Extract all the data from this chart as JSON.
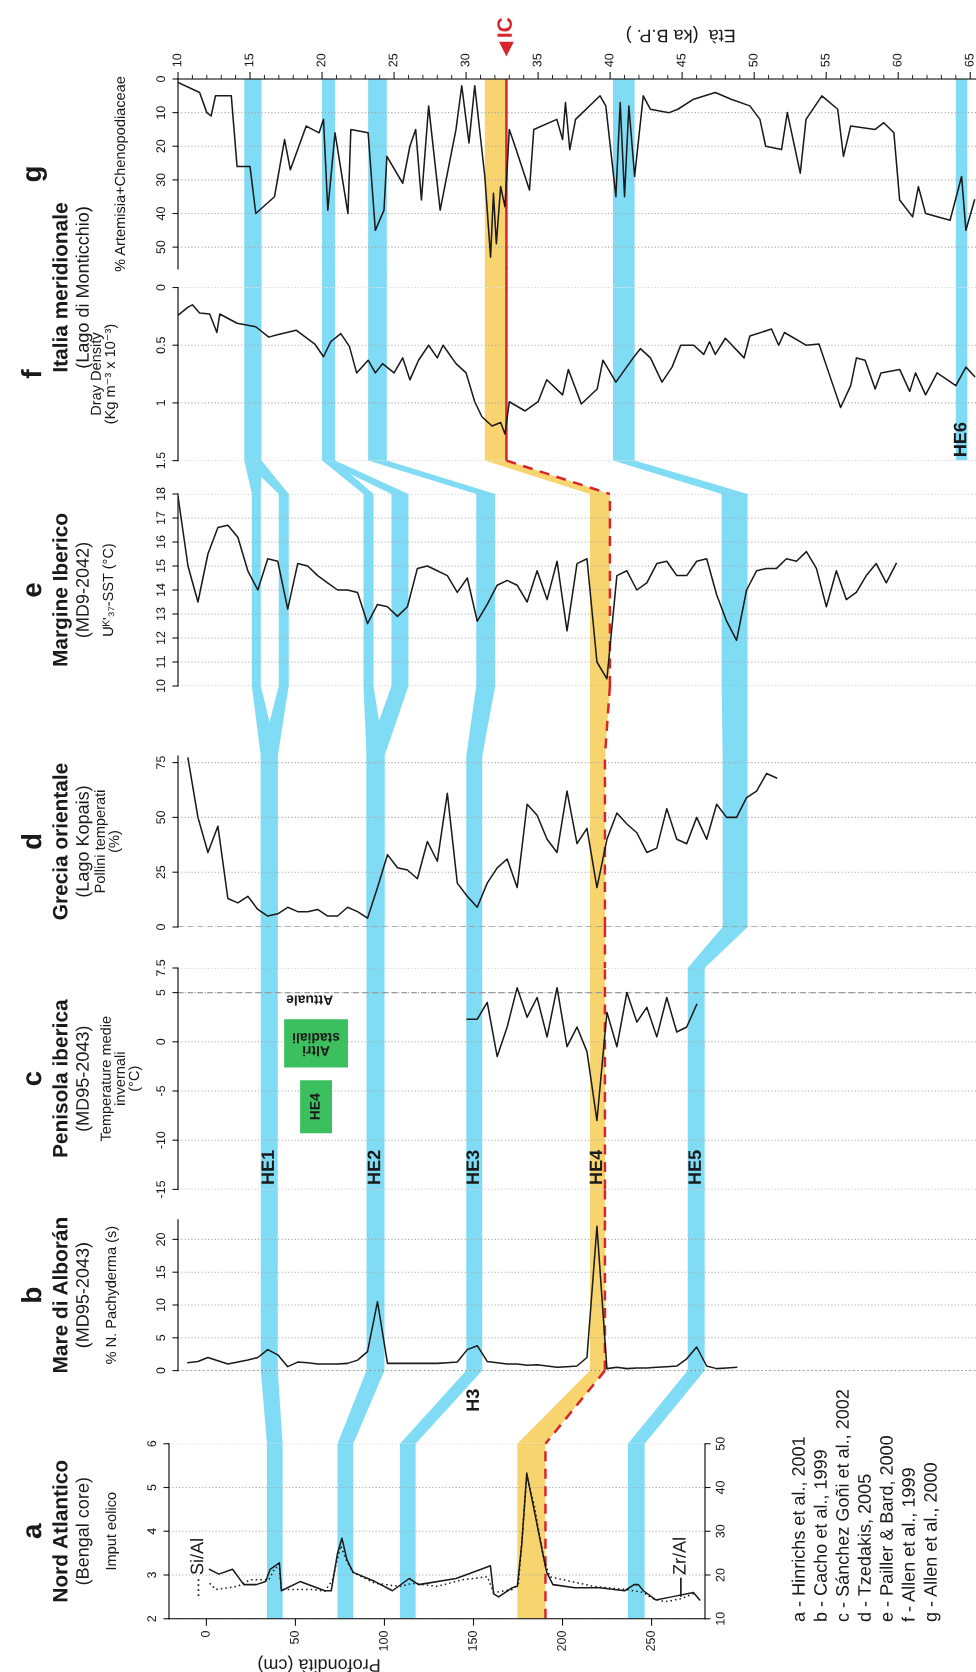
{
  "chart_data": [
    {
      "type": "line",
      "title": "g",
      "ylabel": "% Artemisia+Chenopodiaceae",
      "xlabel": "Età  (ka B.P. )",
      "xlim": [
        10,
        65.4
      ],
      "xticks": [
        10,
        15,
        20,
        25,
        30,
        35,
        40,
        45,
        50,
        55,
        60,
        65
      ],
      "ylim": [
        56.5,
        0
      ],
      "yticks": [
        0,
        10,
        20,
        30,
        40,
        50
      ],
      "grid": "y",
      "x": [
        10.0,
        11.5,
        12.0,
        12.3,
        12.6,
        13.7,
        14.1,
        15.0,
        15.4,
        16.7,
        17.4,
        17.8,
        18.9,
        19.8,
        20.1,
        20.4,
        20.9,
        21.8,
        22.0,
        23.2,
        23.7,
        24.3,
        24.5,
        25.6,
        26.1,
        26.5,
        26.9,
        27.4,
        28.2,
        29.3,
        29.7,
        30.2,
        30.6,
        31.3,
        31.7,
        31.9,
        32.1,
        32.4,
        32.7,
        33.0,
        33.4,
        34.4,
        34.7,
        36.3,
        36.7,
        36.9,
        37.2,
        37.6,
        39.3,
        39.7,
        40.4,
        40.7,
        41.0,
        41.3,
        41.7,
        42.3,
        42.8,
        44.1,
        44.7,
        45.8,
        47.3,
        48.4,
        49.7,
        50.4,
        50.8,
        51.9,
        52.3,
        53.2,
        53.6,
        54.7,
        55.8,
        56.2,
        56.7,
        58.4,
        59.0,
        59.7,
        60.1,
        61.0,
        61.4,
        61.9,
        63.6,
        64.4,
        64.7,
        65.3
      ],
      "series": [
        {
          "color": "#1a1a1a",
          "values": [
            1,
            4,
            10,
            11,
            5,
            5,
            26,
            26,
            40,
            35,
            18,
            27,
            14,
            16,
            12,
            39,
            16,
            40,
            15,
            16,
            45,
            39,
            23,
            31,
            20,
            15,
            36,
            8,
            39,
            15,
            2,
            19,
            2,
            29,
            53,
            34,
            49,
            32,
            38,
            15,
            20,
            33,
            15,
            12,
            18,
            7,
            21,
            12,
            5,
            8,
            35,
            7,
            35,
            8,
            29,
            5,
            9,
            10,
            9,
            6,
            4,
            6,
            8,
            12,
            20,
            21,
            10,
            28,
            12,
            5,
            9,
            23,
            14,
            15,
            13,
            16,
            36,
            41,
            32,
            40,
            42,
            29,
            45,
            36
          ]
        }
      ],
      "bands": [
        {
          "axis": "x",
          "from": 14.6,
          "to": 15.8,
          "color": "#80dcf5"
        },
        {
          "axis": "x",
          "from": 20.0,
          "to": 20.9,
          "color": "#80dcf5"
        },
        {
          "axis": "x",
          "from": 23.2,
          "to": 24.5,
          "color": "#80dcf5"
        },
        {
          "axis": "x",
          "from": 31.3,
          "to": 32.8,
          "color": "#f8d46f"
        },
        {
          "axis": "x",
          "from": 40.2,
          "to": 41.7,
          "color": "#80dcf5"
        },
        {
          "axis": "x",
          "from": 64.0,
          "to": 64.8,
          "color": "#80dcf5"
        }
      ],
      "ref_lines": [
        {
          "axis": "x",
          "value": 32.8,
          "label": "IC",
          "color": "#d7262b",
          "line_style": "solid"
        }
      ]
    },
    {
      "type": "line",
      "title": "f",
      "subtitle": "Italia meridionale",
      "annotations": [
        "(Lago di Monticchio)"
      ],
      "ylabel": "Dray Density\n(Kg m⁻³ x 10⁻³)",
      "xlim": [
        10,
        65.4
      ],
      "ylim": [
        1.5,
        0
      ],
      "yticks": [
        0,
        0.5,
        1,
        1.5
      ],
      "grid": "y",
      "tick_labels": "y",
      "x": [
        10.0,
        10.7,
        11.0,
        11.5,
        12.2,
        12.7,
        12.9,
        14.1,
        15.4,
        16.3,
        16.9,
        18.2,
        19.5,
        20.1,
        20.6,
        21.3,
        21.9,
        22.4,
        23.2,
        23.7,
        24.2,
        25.0,
        25.6,
        26.1,
        26.7,
        27.4,
        28.0,
        28.4,
        29.3,
        30.0,
        30.6,
        31.1,
        31.8,
        32.4,
        32.7,
        33.0,
        34.1,
        35.0,
        35.6,
        36.7,
        37.1,
        38.0,
        39.1,
        39.5,
        40.4,
        41.6,
        42.1,
        42.8,
        43.6,
        44.3,
        44.9,
        45.8,
        46.5,
        46.9,
        47.3,
        48.0,
        49.3,
        49.7,
        51.2,
        51.7,
        52.1,
        53.6,
        54.5,
        55.4,
        56.0,
        56.7,
        57.1,
        57.7,
        58.4,
        58.8,
        60.1,
        60.8,
        61.2,
        61.9,
        62.7,
        64.0,
        64.7,
        65.3
      ],
      "series": [
        {
          "color": "#1a1a1a",
          "values": [
            0.24,
            0.17,
            0.15,
            0.22,
            0.23,
            0.39,
            0.23,
            0.31,
            0.34,
            0.43,
            0.41,
            0.37,
            0.49,
            0.6,
            0.47,
            0.4,
            0.51,
            0.74,
            0.63,
            0.74,
            0.66,
            0.74,
            0.61,
            0.8,
            0.63,
            0.5,
            0.61,
            0.5,
            0.66,
            0.74,
            0.99,
            1.12,
            1.2,
            1.17,
            1.27,
            0.99,
            1.07,
            0.99,
            0.8,
            0.93,
            0.71,
            1.01,
            0.88,
            0.63,
            0.82,
            0.61,
            0.53,
            0.61,
            0.82,
            0.69,
            0.5,
            0.5,
            0.58,
            0.47,
            0.58,
            0.44,
            0.61,
            0.42,
            0.36,
            0.5,
            0.39,
            0.5,
            0.49,
            0.82,
            1.04,
            0.85,
            0.61,
            0.63,
            0.88,
            0.74,
            0.71,
            0.9,
            0.74,
            0.93,
            0.74,
            0.85,
            0.69,
            0.77
          ]
        }
      ],
      "bands": [
        {
          "axis": "x",
          "from": 14.6,
          "to": 15.8,
          "color": "#80dcf5"
        },
        {
          "axis": "x",
          "from": 20.0,
          "to": 20.9,
          "color": "#80dcf5"
        },
        {
          "axis": "x",
          "from": 23.2,
          "to": 24.5,
          "color": "#80dcf5"
        },
        {
          "axis": "x",
          "from": 31.3,
          "to": 32.8,
          "color": "#f8d46f"
        },
        {
          "axis": "x",
          "from": 40.2,
          "to": 41.7,
          "color": "#80dcf5"
        },
        {
          "axis": "x",
          "from": 64.0,
          "to": 64.8,
          "label": "HE6",
          "color": "#80dcf5"
        }
      ],
      "ref_lines": [
        {
          "axis": "x",
          "value": 32.8,
          "color": "#d7262b",
          "line_style": "solid"
        }
      ]
    },
    {
      "type": "line",
      "title": "e",
      "subtitle": "Margine Iberico",
      "annotations": [
        "(MD9-2042)"
      ],
      "ylabel": "Uᴷ'₃₇-SST (°C)",
      "ylim": [
        10,
        18
      ],
      "yticks": [
        10,
        11,
        12,
        13,
        14,
        15,
        16,
        17,
        18
      ],
      "grid": "y",
      "tick_labels": "y",
      "categories": [
        null,
        null,
        null,
        null,
        null,
        null,
        null,
        null,
        null,
        null,
        null,
        null,
        null,
        null,
        null,
        null,
        null,
        null,
        null,
        null,
        null,
        null,
        null,
        null,
        null,
        null,
        null,
        null,
        null,
        null,
        null,
        null,
        null,
        null,
        null,
        null,
        null,
        null,
        null,
        null,
        null,
        null,
        null,
        null,
        null,
        null,
        null,
        null,
        null,
        null,
        null,
        null,
        null,
        null,
        null,
        null,
        null,
        null,
        null,
        null,
        null,
        null,
        null,
        null,
        null,
        null,
        null,
        null,
        null,
        null,
        null,
        null,
        null,
        null,
        null,
        null,
        null,
        null,
        null,
        null
      ],
      "series": [
        {
          "color": "#1a1a1a",
          "values": [
            17.9,
            15.0,
            13.5,
            15.5,
            16.6,
            16.7,
            16.2,
            14.8,
            14.0,
            15.3,
            15.2,
            13.2,
            15.1,
            15.0,
            14.6,
            14.3,
            14.0,
            14.0,
            13.9,
            12.6,
            13.4,
            13.3,
            12.9,
            13.3,
            14.9,
            15.0,
            14.8,
            14.6,
            13.9,
            14.5,
            12.7,
            13.4,
            14.2,
            14.4,
            14.2,
            13.5,
            14.8,
            13.6,
            15.2,
            12.3,
            15.1,
            15.3,
            11.0,
            10.3,
            14.6,
            14.8,
            14.0,
            14.3,
            15.1,
            15.2,
            14.6,
            14.6,
            15.2,
            15.3,
            13.8,
            12.7,
            11.9,
            14.0,
            14.8,
            14.9,
            14.9,
            15.3,
            15.2,
            15.6,
            14.9,
            13.3,
            14.8,
            13.6,
            13.9,
            14.6,
            15.1,
            14.3,
            15.1,
            null,
            null,
            null,
            null,
            null,
            null,
            null
          ]
        }
      ]
    },
    {
      "type": "line",
      "title": "d",
      "subtitle": "Grecia orientale",
      "annotations": [
        "(Lago Kopais)"
      ],
      "ylabel": "Pollini temperati\n(%)",
      "ylim": [
        0,
        78
      ],
      "yticks": [
        0,
        25,
        50,
        75
      ],
      "grid": "y",
      "tick_labels": "y",
      "categories": [
        null,
        null,
        null,
        null,
        null,
        null,
        null,
        null,
        null,
        null,
        null,
        null,
        null,
        null,
        null,
        null,
        null,
        null,
        null,
        null,
        null,
        null,
        null,
        null,
        null,
        null,
        null,
        null,
        null,
        null,
        null,
        null,
        null,
        null,
        null,
        null,
        null,
        null,
        null,
        null,
        null,
        null,
        null,
        null,
        null,
        null,
        null,
        null,
        null,
        null,
        null,
        null,
        null,
        null,
        null,
        null,
        null,
        null,
        null,
        null,
        null,
        null,
        null,
        null,
        null,
        null,
        null,
        null,
        null,
        null,
        null,
        null,
        null,
        null,
        null,
        null,
        null,
        null,
        null,
        null
      ],
      "series": [
        {
          "color": "#1a1a1a",
          "values": [
            null,
            77,
            50,
            34,
            46,
            13,
            11,
            14,
            8,
            5,
            6,
            9,
            7,
            7,
            8,
            5,
            5,
            9,
            7,
            4,
            18,
            33,
            27,
            26,
            22,
            39,
            30,
            61,
            20,
            14,
            9,
            20,
            27,
            31,
            18,
            56,
            51,
            40,
            34,
            62,
            38,
            45,
            18,
            40,
            52,
            47,
            43,
            34,
            36,
            54,
            40,
            38,
            50,
            40,
            56,
            50,
            50,
            59,
            62,
            70,
            68,
            null,
            null,
            null,
            null,
            null,
            null,
            null,
            null,
            null,
            null,
            null,
            null,
            null,
            null,
            null,
            null,
            null,
            null,
            null
          ]
        }
      ],
      "ref_lines": [
        {
          "axis": "y",
          "value": 0,
          "color": "#9a9a9a",
          "line_style": "dashed"
        }
      ]
    },
    {
      "type": "line",
      "title": "c",
      "subtitle": "Penisola iberica",
      "annotations": [
        "(MD95-2043)",
        "HE1",
        "HE2",
        "HE3",
        "HE4",
        "HE5"
      ],
      "ylabel": "Temperature medie\ninvernali\n(°C)",
      "ylim": [
        -15,
        7.5
      ],
      "yticks": [
        -15,
        -10,
        -5,
        0,
        5,
        7.5
      ],
      "grid": "y",
      "tick_labels": "y",
      "categories": [
        null,
        null,
        null,
        null,
        null,
        null,
        null,
        null,
        null,
        null,
        null,
        null,
        null,
        null,
        null,
        null,
        null,
        null,
        null,
        null,
        null,
        null,
        null,
        null,
        null,
        null,
        null,
        null,
        null,
        null,
        null,
        null,
        null,
        null,
        null,
        null,
        null,
        null,
        null,
        null,
        null,
        null,
        null,
        null,
        null,
        null,
        null,
        null,
        null,
        null,
        null,
        null,
        null,
        null,
        null,
        null,
        null,
        null,
        null,
        null,
        null,
        null,
        null,
        null,
        null,
        null,
        null,
        null,
        null,
        null,
        null,
        null,
        null,
        null,
        null,
        null,
        null,
        null,
        null,
        null
      ],
      "series": [
        {
          "color": "#1a1a1a",
          "values": [
            null,
            null,
            null,
            null,
            null,
            null,
            null,
            null,
            null,
            null,
            null,
            null,
            null,
            null,
            null,
            null,
            null,
            null,
            null,
            null,
            null,
            null,
            null,
            null,
            null,
            null,
            null,
            null,
            null,
            2.3,
            2.3,
            4.0,
            -1.5,
            1.5,
            5.5,
            2.5,
            4.5,
            0.5,
            5.5,
            -0.5,
            1.5,
            -1.0,
            -8.0,
            3.0,
            -0.5,
            5.0,
            2.0,
            3.5,
            0.5,
            4.5,
            1.0,
            1.5,
            3.8,
            null,
            null,
            null,
            null,
            null,
            null,
            null,
            null,
            null,
            null,
            null,
            null,
            null,
            null,
            null,
            null,
            null,
            null,
            null,
            null,
            null,
            null,
            null,
            null,
            null,
            null,
            null
          ]
        }
      ],
      "bands": [
        {
          "axis": "y",
          "from": -2.6,
          "to": 2.3,
          "label": "Altri\nstadiali",
          "color": "#3cbf5f"
        },
        {
          "axis": "y",
          "from": -9.3,
          "to": -3.9,
          "label": "HE4",
          "color": "#3cbf5f"
        }
      ],
      "ref_lines": [
        {
          "axis": "y",
          "value": 5,
          "label": "Attuale",
          "color": "#9a9a9a",
          "line_style": "dashed"
        }
      ]
    },
    {
      "type": "line",
      "title": "b",
      "subtitle": "Mare di Alborán",
      "annotations": [
        "(MD95-2043)",
        "H3"
      ],
      "ylabel": "% N. Pachyderma (s)",
      "ylim": [
        0,
        23
      ],
      "yticks": [
        0,
        5,
        10,
        15,
        20
      ],
      "grid": "y",
      "tick_labels": "y",
      "categories": [
        null,
        null,
        null,
        null,
        null,
        null,
        null,
        null,
        null,
        null,
        null,
        null,
        null,
        null,
        null,
        null,
        null,
        null,
        null,
        null,
        null,
        null,
        null,
        null,
        null,
        null,
        null,
        null,
        null,
        null,
        null,
        null,
        null,
        null,
        null,
        null,
        null,
        null,
        null,
        null,
        null,
        null,
        null,
        null,
        null,
        null,
        null,
        null,
        null,
        null,
        null,
        null,
        null,
        null,
        null,
        null,
        null,
        null,
        null,
        null,
        null,
        null,
        null,
        null,
        null,
        null,
        null,
        null,
        null,
        null,
        null,
        null,
        null,
        null,
        null,
        null,
        null,
        null,
        null,
        null
      ],
      "series": [
        {
          "color": "#1a1a1a",
          "values": [
            null,
            1.2,
            1.4,
            2.0,
            1.5,
            1.0,
            1.3,
            1.6,
            2.0,
            3.2,
            2.4,
            0.6,
            1.3,
            1.2,
            1.0,
            1.0,
            1.0,
            1.1,
            1.6,
            2.9,
            10.5,
            1.1,
            1.1,
            1.1,
            1.1,
            1.1,
            1.1,
            1.2,
            1.3,
            3.2,
            3.8,
            1.4,
            1.2,
            1.0,
            1.0,
            0.8,
            0.9,
            0.7,
            0.5,
            0.6,
            0.7,
            2.0,
            22,
            0.3,
            0.5,
            0.3,
            0.4,
            0.4,
            0.5,
            0.6,
            0.7,
            1.8,
            3.6,
            0.7,
            0.3,
            0.4,
            0.5,
            null,
            null,
            null,
            null,
            null,
            null,
            null,
            null,
            null,
            null,
            null,
            null,
            null,
            null,
            null,
            null,
            null,
            null,
            null,
            null,
            null,
            null,
            null
          ]
        }
      ],
      "ref_lines": [
        {
          "axis": "y",
          "value": 0,
          "color": "#333333",
          "line_style": "dotted"
        }
      ]
    },
    {
      "type": "line",
      "title": "a",
      "subtitle": "Nord Atlantico",
      "annotations": [
        "(Bengal core)",
        "a - Hinrichs et al., 2001",
        "b - Cacho et al., 1999",
        "c - Sánchez Goñi et al., 2002",
        "d - Tzedakis, 2005",
        "e - Pailler & Bard, 2000",
        "f - Allen et al., 1999",
        "g - Allen et al., 2000"
      ],
      "ylabel": "Imput eolico",
      "xlabel": "Profondità (cm)",
      "xlim": [
        -21,
        280
      ],
      "xticks": [
        0,
        50,
        100,
        150,
        200,
        250
      ],
      "ylim": [
        2,
        6
      ],
      "yticks": [
        2,
        3,
        4,
        5,
        6
      ],
      "y2lim": [
        10,
        50
      ],
      "y2ticks": [
        10,
        20,
        30,
        40,
        50
      ],
      "grid": "y",
      "series": [
        {
          "name": "Si/Al",
          "color": "#1a1a1a",
          "line_style": "dotted",
          "x": [
            1.8,
            5.3,
            17.5,
            24.5,
            35.1,
            38.6,
            41.0,
            42.1,
            59.6,
            66.6,
            70.8,
            75.4,
            78.9,
            82.4,
            94.7,
            108.7,
            115.7,
            129.7,
            143.7,
            157.8,
            161.3,
            171.8,
            175.3,
            179.9,
            184.1,
            189.3,
            192.8,
            217.4,
            234.9,
            245.4,
            250.7,
            257.7,
            266.5,
            275.2
          ],
          "values": [
            2.81,
            2.67,
            2.74,
            2.89,
            2.89,
            3.17,
            3.17,
            2.67,
            2.67,
            2.63,
            2.89,
            3.67,
            3.31,
            3.06,
            2.81,
            2.74,
            2.81,
            2.74,
            2.89,
            2.96,
            2.6,
            2.67,
            2.81,
            5.24,
            4.6,
            3.39,
            2.96,
            2.74,
            2.67,
            2.6,
            2.46,
            2.39,
            2.46,
            2.6
          ]
        },
        {
          "name": "Zr/Al",
          "color": "#1a1a1a",
          "axis": "y2",
          "x": [
            1.8,
            7.0,
            14.7,
            21.0,
            28.0,
            33.3,
            35.8,
            41.0,
            42.1,
            52.6,
            66.6,
            70.1,
            73.6,
            76.1,
            78.9,
            82.4,
            94.7,
            104.5,
            113.9,
            119.2,
            140.2,
            154.3,
            159.5,
            161.3,
            164.1,
            171.8,
            174.6,
            177.1,
            179.9,
            182.3,
            185.1,
            188.6,
            191.1,
            194.6,
            206.9,
            220.9,
            234.9,
            240.2,
            242.6,
            245.4,
            252.4,
            261.2,
            273.5,
            277.0
          ],
          "values": [
            21.3,
            20.2,
            21.3,
            17.8,
            17.8,
            18.5,
            21.3,
            22.8,
            16.4,
            18.5,
            16.4,
            16.4,
            24.9,
            28.4,
            23.5,
            20.6,
            18.5,
            16.4,
            19.2,
            17.8,
            19.2,
            21.3,
            22.1,
            15.7,
            15.0,
            17.1,
            17.4,
            27.0,
            43.3,
            38.4,
            32.7,
            25.6,
            20.6,
            17.8,
            17.1,
            17.1,
            16.4,
            17.8,
            17.8,
            16.4,
            14.3,
            15.0,
            16.0,
            14.3
          ]
        }
      ],
      "bands": [
        {
          "axis": "x",
          "from": 34.0,
          "to": 42.8,
          "color": "#80dcf5"
        },
        {
          "axis": "x",
          "from": 73.6,
          "to": 82.5,
          "color": "#80dcf5"
        },
        {
          "axis": "x",
          "from": 108.7,
          "to": 117.5,
          "color": "#80dcf5"
        },
        {
          "axis": "x",
          "from": 174.6,
          "to": 190.4,
          "color": "#f8d46f"
        },
        {
          "axis": "x",
          "from": 236.7,
          "to": 246.1,
          "color": "#80dcf5"
        }
      ],
      "ref_lines": [
        {
          "axis": "x",
          "value": 190.4,
          "color": "#d7262b",
          "line_style": "dashed"
        }
      ]
    }
  ]
}
